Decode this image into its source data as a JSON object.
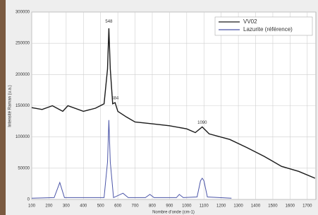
{
  "chart_data": {
    "type": "line",
    "ylabel": "Intensité Raman (u.a.)",
    "xlabel": "Nombre d'onde (cm-1)",
    "xlim": [
      100,
      1750
    ],
    "xticks": [
      100,
      200,
      300,
      400,
      500,
      600,
      700,
      800,
      900,
      1000,
      1100,
      1200,
      1300,
      1400,
      1500,
      1600,
      1700
    ],
    "ylim": [
      0,
      300000
    ],
    "yticks": [
      0,
      50000,
      100000,
      150000,
      200000,
      250000,
      300000
    ],
    "grid": true,
    "legend": "top-right",
    "series": [
      {
        "name": "VV02",
        "color": "#1a1a1a",
        "x": [
          100,
          160,
          220,
          280,
          310,
          400,
          470,
          520,
          540,
          548,
          556,
          570,
          584,
          600,
          650,
          700,
          800,
          900,
          1000,
          1050,
          1090,
          1130,
          1250,
          1350,
          1450,
          1550,
          1650,
          1745
        ],
        "values": [
          147000,
          144000,
          150000,
          141000,
          150000,
          141000,
          146000,
          153000,
          209000,
          274000,
          209000,
          153000,
          155000,
          141000,
          132000,
          124000,
          121000,
          118000,
          113000,
          107000,
          116000,
          105000,
          96000,
          83000,
          69000,
          53000,
          45000,
          34000
        ]
      },
      {
        "name": "Lazurite (référence)",
        "color": "#4b55a8",
        "x": [
          100,
          230,
          263,
          290,
          520,
          540,
          548,
          556,
          575,
          630,
          660,
          760,
          786,
          810,
          940,
          957,
          980,
          1060,
          1080,
          1090,
          1100,
          1120,
          1260
        ],
        "values": [
          2000,
          3000,
          27000,
          3000,
          3000,
          60000,
          127000,
          60000,
          3000,
          10000,
          3000,
          3000,
          8000,
          3000,
          3000,
          8000,
          3000,
          4000,
          30000,
          34000,
          30000,
          4000,
          2000
        ]
      }
    ],
    "annotations": [
      {
        "text": "548",
        "x": 548,
        "y": 285000
      },
      {
        "text": "584",
        "x": 584,
        "y": 162000
      },
      {
        "text": "1090",
        "x": 1090,
        "y": 123000
      }
    ]
  }
}
